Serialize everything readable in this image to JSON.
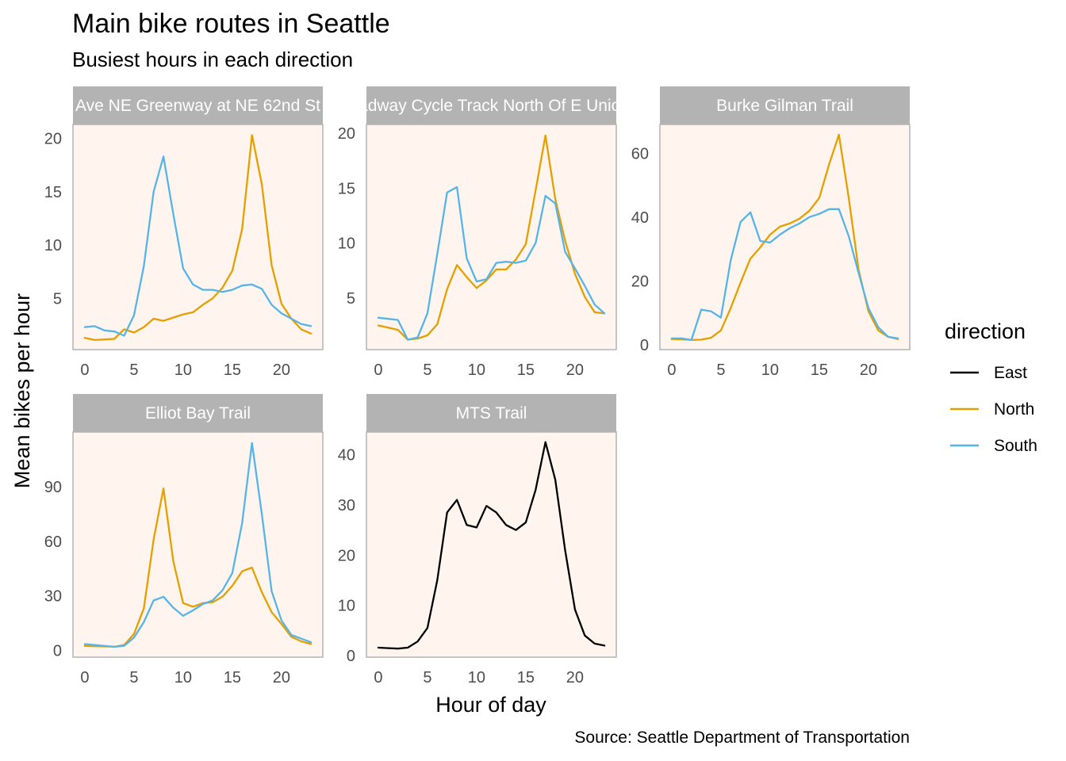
{
  "chart_data": {
    "type": "line",
    "title": "Main bike routes in Seattle",
    "subtitle": "Busiest hours in each direction",
    "xlabel": "Hour of day",
    "ylabel": "Mean bikes per hour",
    "caption": "Source: Seattle Department of Transportation",
    "legend": {
      "title": "direction",
      "placement": "right",
      "entries": [
        {
          "name": "East",
          "color": "#000000"
        },
        {
          "name": "North",
          "color": "#E69F00"
        },
        {
          "name": "South",
          "color": "#56B4E9"
        }
      ]
    },
    "x": [
      0,
      1,
      2,
      3,
      4,
      5,
      6,
      7,
      8,
      9,
      10,
      11,
      12,
      13,
      14,
      15,
      16,
      17,
      18,
      19,
      20,
      21,
      22,
      23
    ],
    "grid": false,
    "panel_background": "#FFF5EE",
    "strip_background": "#B3B3B3",
    "panels": [
      {
        "strip": "Ave NE Greenway at NE 62nd St",
        "xlim": [
          -1.2,
          24.2
        ],
        "ylim": [
          0.2,
          21.3
        ],
        "xticks": [
          0,
          5,
          10,
          15,
          20
        ],
        "xtick_labels": [
          "0",
          "5",
          "10",
          "15",
          "20"
        ],
        "yticks": [
          5,
          10,
          15,
          20
        ],
        "ytick_labels": [
          "5",
          "10",
          "15",
          "20"
        ],
        "series": [
          {
            "name": "North",
            "values": [
              1.3,
              1.1,
              1.15,
              1.2,
              2.1,
              1.8,
              2.3,
              3.1,
              2.9,
              3.2,
              3.5,
              3.7,
              4.4,
              5.0,
              6.0,
              7.6,
              11.5,
              20.3,
              15.7,
              8.1,
              4.5,
              3.1,
              2.1,
              1.7
            ]
          },
          {
            "name": "South",
            "values": [
              2.3,
              2.4,
              2.0,
              1.9,
              1.5,
              3.4,
              8.0,
              15.0,
              18.3,
              12.9,
              7.8,
              6.3,
              5.8,
              5.8,
              5.6,
              5.8,
              6.2,
              6.3,
              5.9,
              4.4,
              3.6,
              3.1,
              2.6,
              2.4
            ]
          }
        ]
      },
      {
        "strip": "Broadway Cycle Track North Of E Union St",
        "xlim": [
          -1.2,
          24.2
        ],
        "ylim": [
          0.3,
          20.8
        ],
        "xticks": [
          0,
          5,
          10,
          15,
          20
        ],
        "xtick_labels": [
          "0",
          "5",
          "10",
          "15",
          "20"
        ],
        "yticks": [
          5,
          10,
          15,
          20
        ],
        "ytick_labels": [
          "5",
          "10",
          "15",
          "20"
        ],
        "series": [
          {
            "name": "North",
            "values": [
              2.5,
              2.3,
              2.1,
              1.2,
              1.3,
              1.6,
              2.6,
              5.8,
              8.0,
              6.9,
              5.9,
              6.6,
              7.6,
              7.6,
              8.5,
              9.9,
              14.8,
              19.8,
              14.0,
              10.2,
              7.2,
              5.1,
              3.7,
              3.6
            ]
          },
          {
            "name": "South",
            "values": [
              3.2,
              3.1,
              3.0,
              1.2,
              1.4,
              3.6,
              9.0,
              14.6,
              15.1,
              8.6,
              6.5,
              6.7,
              8.2,
              8.3,
              8.2,
              8.4,
              10.0,
              14.3,
              13.6,
              9.2,
              7.7,
              6.1,
              4.4,
              3.6
            ]
          }
        ]
      },
      {
        "strip": "Burke Gilman Trail",
        "xlim": [
          -1.2,
          24.2
        ],
        "ylim": [
          -1.5,
          69
        ],
        "xticks": [
          0,
          5,
          10,
          15,
          20
        ],
        "xtick_labels": [
          "0",
          "5",
          "10",
          "15",
          "20"
        ],
        "yticks": [
          0,
          20,
          40,
          60
        ],
        "ytick_labels": [
          "0",
          "20",
          "40",
          "60"
        ],
        "series": [
          {
            "name": "North",
            "values": [
              1.8,
              1.7,
              1.5,
              1.6,
              2.2,
              4.5,
              11.5,
              19.5,
              27.0,
              30.5,
              34.5,
              37.0,
              38.0,
              39.5,
              42.0,
              46.0,
              56.5,
              65.8,
              46.0,
              23.5,
              10.5,
              4.5,
              2.5,
              1.8
            ]
          },
          {
            "name": "South",
            "values": [
              2.0,
              2.0,
              1.5,
              11.0,
              10.5,
              8.5,
              26.5,
              38.5,
              41.5,
              32.5,
              32.0,
              34.5,
              36.5,
              38.0,
              40.0,
              41.0,
              42.5,
              42.5,
              34.0,
              22.5,
              11.5,
              5.5,
              2.5,
              2.0
            ]
          }
        ]
      },
      {
        "strip": "Elliot Bay Trail",
        "xlim": [
          -1.2,
          24.2
        ],
        "ylim": [
          -3.7,
          120
        ],
        "xticks": [
          0,
          5,
          10,
          15,
          20
        ],
        "xtick_labels": [
          "0",
          "5",
          "10",
          "15",
          "20"
        ],
        "yticks": [
          0,
          30,
          60,
          90
        ],
        "ytick_labels": [
          "0",
          "30",
          "60",
          "90"
        ],
        "series": [
          {
            "name": "North",
            "values": [
              2.5,
              2.3,
              2.2,
              2.0,
              3.0,
              9.0,
              23.0,
              61.0,
              89.0,
              49.0,
              26.0,
              24.0,
              26.0,
              26.5,
              29.5,
              35.5,
              43.5,
              45.5,
              32.0,
              21.0,
              14.5,
              7.5,
              5.0,
              3.5
            ]
          },
          {
            "name": "South",
            "values": [
              3.5,
              3.0,
              2.5,
              2.0,
              2.5,
              7.0,
              15.5,
              27.5,
              29.5,
              23.5,
              19.0,
              22.0,
              25.5,
              27.5,
              33.0,
              42.5,
              70.0,
              114.0,
              75.0,
              32.5,
              16.5,
              8.5,
              6.5,
              4.5
            ]
          }
        ]
      },
      {
        "strip": "MTS Trail",
        "xlim": [
          -1.2,
          24.2
        ],
        "ylim": [
          -0.3,
          44.5
        ],
        "xticks": [
          0,
          5,
          10,
          15,
          20
        ],
        "xtick_labels": [
          "0",
          "5",
          "10",
          "15",
          "20"
        ],
        "yticks": [
          0,
          10,
          20,
          30,
          40
        ],
        "ytick_labels": [
          "0",
          "10",
          "20",
          "30",
          "40"
        ],
        "series": [
          {
            "name": "East",
            "values": [
              1.6,
              1.5,
              1.4,
              1.6,
              2.8,
              5.5,
              15.0,
              28.5,
              31.0,
              26.0,
              25.5,
              29.8,
              28.5,
              26.0,
              25.0,
              26.5,
              33.0,
              42.5,
              35.0,
              21.0,
              9.2,
              4.0,
              2.4,
              2.0
            ]
          }
        ]
      }
    ]
  }
}
